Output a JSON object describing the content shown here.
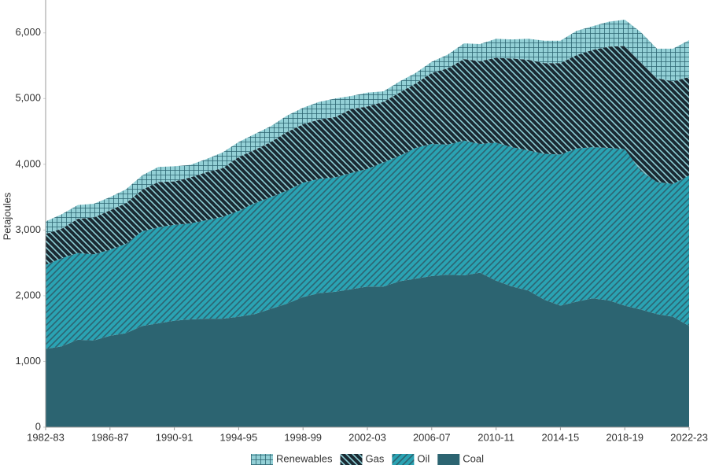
{
  "chart_data": {
    "type": "stacked_area",
    "y_label": "Petajoules",
    "categories": [
      "1982-83",
      null,
      null,
      null,
      "1986-87",
      null,
      null,
      null,
      "1990-91",
      null,
      null,
      null,
      "1994-95",
      null,
      null,
      null,
      "1998-99",
      null,
      null,
      null,
      "2002-03",
      null,
      null,
      null,
      "2006-07",
      null,
      null,
      null,
      "2010-11",
      null,
      null,
      null,
      "2014-15",
      null,
      null,
      null,
      "2018-19",
      null,
      null,
      null,
      "2022-23"
    ],
    "series": [
      {
        "name": "Coal",
        "color": "#2c6471",
        "pattern": "solid",
        "values": [
          1190,
          1230,
          1330,
          1320,
          1390,
          1430,
          1540,
          1580,
          1620,
          1640,
          1650,
          1650,
          1680,
          1720,
          1800,
          1880,
          1980,
          2040,
          2060,
          2100,
          2140,
          2140,
          2220,
          2260,
          2300,
          2320,
          2310,
          2350,
          2230,
          2140,
          2080,
          1940,
          1850,
          1910,
          1960,
          1930,
          1850,
          1790,
          1720,
          1680,
          1540
        ]
      },
      {
        "name": "Oil",
        "color": "#2aa3b3",
        "hatch_color": "#2c6471",
        "pattern": "forward-diagonal",
        "values": [
          1280,
          1340,
          1320,
          1310,
          1310,
          1360,
          1440,
          1460,
          1460,
          1460,
          1500,
          1550,
          1610,
          1690,
          1700,
          1720,
          1740,
          1740,
          1740,
          1770,
          1790,
          1890,
          1910,
          1990,
          2010,
          1980,
          2050,
          1960,
          2100,
          2120,
          2130,
          2220,
          2300,
          2330,
          2300,
          2320,
          2380,
          2110,
          2010,
          2020,
          2290
        ]
      },
      {
        "name": "Gas",
        "color": "#1a2a33",
        "hatch_color": "#8ecfd6",
        "pattern": "back-diagonal",
        "values": [
          470,
          450,
          520,
          560,
          600,
          620,
          630,
          690,
          660,
          700,
          730,
          740,
          820,
          810,
          840,
          890,
          890,
          900,
          920,
          970,
          950,
          920,
          960,
          980,
          1080,
          1160,
          1240,
          1260,
          1290,
          1350,
          1380,
          1380,
          1390,
          1420,
          1480,
          1540,
          1570,
          1650,
          1580,
          1560,
          1500
        ]
      },
      {
        "name": "Renewables",
        "color": "#93d0d6",
        "hatch_color": "#2c6471",
        "pattern": "grid",
        "values": [
          190,
          220,
          210,
          210,
          200,
          210,
          220,
          230,
          230,
          190,
          200,
          240,
          230,
          240,
          240,
          250,
          250,
          270,
          280,
          200,
          210,
          160,
          170,
          160,
          170,
          210,
          240,
          260,
          290,
          290,
          320,
          340,
          340,
          370,
          360,
          380,
          400,
          460,
          450,
          500,
          560
        ]
      }
    ],
    "ylim": [
      0,
      6500
    ],
    "yticks": [
      0,
      {
        "value": 1000,
        "label": "1,000"
      },
      {
        "value": 2000,
        "label": "2,000"
      },
      {
        "value": 3000,
        "label": "3,000"
      },
      {
        "value": 4000,
        "label": "4,000"
      },
      {
        "value": 5000,
        "label": "5,000"
      },
      {
        "value": 6000,
        "label": "6,000"
      }
    ],
    "grid": false,
    "legend_position": "bottom"
  }
}
